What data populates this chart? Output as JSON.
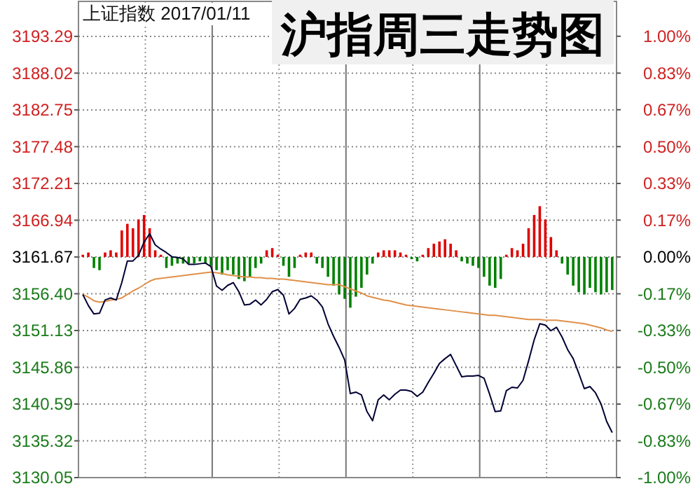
{
  "chart_data": {
    "type": "line",
    "title": "沪指周三走势图",
    "subtitle": "上证指数 2017/01/11",
    "categories": [
      null,
      null,
      null,
      null,
      null,
      null,
      null,
      null,
      null,
      null,
      null,
      null,
      null,
      null,
      null,
      null,
      null,
      null,
      null,
      null,
      null,
      null,
      null,
      null,
      null,
      null,
      null,
      null,
      null,
      null,
      null,
      null,
      null,
      null,
      null,
      null,
      null,
      null,
      null,
      null,
      null,
      null,
      null,
      null,
      null,
      null,
      null,
      null,
      null,
      null,
      null,
      null,
      null,
      null,
      null,
      null,
      null,
      null,
      null,
      null,
      null,
      null,
      null,
      null,
      null,
      null,
      null,
      null,
      null,
      null,
      null,
      null,
      null,
      null,
      null,
      null,
      null,
      null,
      null,
      null,
      null,
      null,
      null,
      null,
      null,
      null,
      null,
      null,
      null,
      null,
      null,
      null,
      null,
      null,
      null,
      null
    ],
    "ylim": [
      3130.05,
      3198.3
    ],
    "yticks": [
      {
        "value": 3130.05,
        "label": "3130.05"
      },
      {
        "value": 3135.32,
        "label": "3135.32"
      },
      {
        "value": 3140.59,
        "label": "3140.59"
      },
      {
        "value": 3145.86,
        "label": "3145.86"
      },
      {
        "value": 3151.13,
        "label": "3151.13"
      },
      {
        "value": 3156.4,
        "label": "3156.40"
      },
      {
        "value": 3161.67,
        "label": "3161.67"
      },
      {
        "value": 3166.94,
        "label": "3166.94"
      },
      {
        "value": 3172.21,
        "label": "3172.21"
      },
      {
        "value": 3177.48,
        "label": "3177.48"
      },
      {
        "value": 3182.75,
        "label": "3182.75"
      },
      {
        "value": 3188.02,
        "label": "3188.02"
      },
      {
        "value": 3193.29,
        "label": "3193.29"
      }
    ],
    "y2lim": [
      -1,
      1.158
    ],
    "y2ticks": [
      {
        "value": -1,
        "label": "-1.00%"
      },
      {
        "value": -0.833,
        "label": "-0.83%"
      },
      {
        "value": -0.667,
        "label": "-0.67%"
      },
      {
        "value": -0.5,
        "label": "-0.50%"
      },
      {
        "value": -0.333,
        "label": "-0.33%"
      },
      {
        "value": -0.167,
        "label": "-0.17%"
      },
      {
        "value": 0,
        "label": "0.00%"
      },
      {
        "value": 0.167,
        "label": "0.17%"
      },
      {
        "value": 0.333,
        "label": "0.33%"
      },
      {
        "value": 0.5,
        "label": "0.50%"
      },
      {
        "value": 0.667,
        "label": "0.67%"
      },
      {
        "value": 0.833,
        "label": "0.83%"
      },
      {
        "value": 1,
        "label": "1.00%"
      }
    ],
    "tick_labels": "y",
    "grid": true,
    "series": [
      {
        "type": "bar",
        "axis": "y2",
        "values": [
          0.01,
          0.02,
          -0.05,
          -0.06,
          0.02,
          0.03,
          0.02,
          0.12,
          0.15,
          0.13,
          0.17,
          0.19,
          0.13,
          0.03,
          0.01,
          -0.05,
          -0.04,
          -0.03,
          -0.03,
          -0.03,
          -0.03,
          -0.02,
          -0.03,
          -0.04,
          -0.06,
          -0.08,
          -0.06,
          -0.08,
          -0.1,
          -0.11,
          -0.09,
          -0.05,
          -0.03,
          0.03,
          0.04,
          0.01,
          -0.04,
          -0.09,
          -0.05,
          0.01,
          0.02,
          0.02,
          -0.03,
          -0.05,
          -0.09,
          -0.13,
          -0.17,
          -0.19,
          -0.23,
          -0.18,
          -0.14,
          -0.08,
          -0.03,
          0.02,
          0.03,
          0.03,
          0.03,
          0.02,
          0.01,
          -0.01,
          -0.02,
          0.01,
          0.04,
          0.06,
          0.07,
          0.08,
          0.06,
          0.03,
          -0.02,
          -0.03,
          -0.04,
          -0.05,
          -0.09,
          -0.13,
          -0.14,
          -0.1,
          0.01,
          0.04,
          0.03,
          0.06,
          0.13,
          0.19,
          0.23,
          0.17,
          0.09,
          0.03,
          -0.03,
          -0.08,
          -0.13,
          -0.16,
          -0.17,
          -0.14,
          -0.16,
          -0.17,
          -0.16,
          -0.15
        ],
        "colors": [
          "#e00000",
          "#e00000",
          "#008000",
          "#008000",
          "#e00000",
          "#e00000",
          "#e00000",
          "#e00000",
          "#e00000",
          "#e00000",
          "#e00000",
          "#e00000",
          "#e00000",
          "#e00000",
          "#e00000",
          "#008000",
          "#008000",
          "#008000",
          "#008000",
          "#008000",
          "#008000",
          "#008000",
          "#008000",
          "#008000",
          "#008000",
          "#008000",
          "#008000",
          "#008000",
          "#008000",
          "#008000",
          "#008000",
          "#008000",
          "#008000",
          "#e00000",
          "#e00000",
          "#e00000",
          "#008000",
          "#008000",
          "#008000",
          "#e00000",
          "#e00000",
          "#e00000",
          "#008000",
          "#008000",
          "#008000",
          "#008000",
          "#008000",
          "#008000",
          "#008000",
          "#008000",
          "#008000",
          "#008000",
          "#008000",
          "#e00000",
          "#e00000",
          "#e00000",
          "#e00000",
          "#e00000",
          "#e00000",
          "#008000",
          "#008000",
          "#e00000",
          "#e00000",
          "#e00000",
          "#e00000",
          "#e00000",
          "#e00000",
          "#e00000",
          "#008000",
          "#008000",
          "#008000",
          "#008000",
          "#008000",
          "#008000",
          "#008000",
          "#008000",
          "#e00000",
          "#e00000",
          "#e00000",
          "#e00000",
          "#e00000",
          "#e00000",
          "#e00000",
          "#e00000",
          "#e00000",
          "#e00000",
          "#008000",
          "#008000",
          "#008000",
          "#008000",
          "#008000",
          "#008000",
          "#008000",
          "#008000",
          "#008000",
          "#008000"
        ]
      },
      {
        "color": "#e0904a",
        "values": [
          3156.3,
          3155.9,
          3155.4,
          3155.2,
          3155.3,
          3155.5,
          3155.6,
          3155.8,
          3156.3,
          3156.8,
          3157.2,
          3157.7,
          3158.2,
          3158.5,
          3158.6,
          3158.7,
          3158.8,
          3158.9,
          3159.0,
          3159.1,
          3159.2,
          3159.3,
          3159.4,
          3159.5,
          3159.4,
          3159.3,
          3159.1,
          3159.0,
          3158.9,
          3158.8,
          3158.8,
          3158.7,
          3158.7,
          3158.6,
          3158.6,
          3158.5,
          3158.5,
          3158.4,
          3158.3,
          3158.2,
          3158.1,
          3158.0,
          3157.9,
          3157.8,
          3157.7,
          3157.7,
          3157.7,
          3157.4,
          3157.1,
          3156.8,
          3156.5,
          3156.1,
          3155.9,
          3155.7,
          3155.5,
          3155.4,
          3155.2,
          3155.0,
          3154.8,
          3154.7,
          3154.6,
          3154.5,
          3154.4,
          3154.3,
          3154.2,
          3154.1,
          3154.0,
          3153.9,
          3153.8,
          3153.7,
          3153.6,
          3153.5,
          3153.4,
          3153.3,
          3153.3,
          3153.2,
          3153.1,
          3153.0,
          3152.9,
          3152.8,
          3152.7,
          3152.7,
          3152.7,
          3152.6,
          3152.6,
          3152.6,
          3152.5,
          3152.4,
          3152.3,
          3152.2,
          3152.1,
          3151.9,
          3151.7,
          3151.5,
          3151.2,
          3151.0
        ]
      },
      {
        "color": "#000033",
        "values": [
          3156.3,
          3154.7,
          3153.5,
          3153.6,
          3155.5,
          3155.8,
          3155.5,
          3158.0,
          3161.1,
          3161.1,
          3161.9,
          3163.8,
          3165.0,
          3163.4,
          3162.8,
          3162.3,
          3161.7,
          3161.6,
          3161.4,
          3160.6,
          3160.6,
          3160.7,
          3160.8,
          3160.3,
          3157.5,
          3156.9,
          3157.6,
          3158.0,
          3156.7,
          3154.8,
          3154.9,
          3155.5,
          3154.8,
          3155.6,
          3156.7,
          3157.0,
          3156.2,
          3153.5,
          3154.3,
          3155.6,
          3155.8,
          3156.1,
          3155.5,
          3154.5,
          3152.1,
          3150.3,
          3148.7,
          3146.9,
          3142.1,
          3142.3,
          3141.9,
          3139.5,
          3138.2,
          3141.2,
          3141.9,
          3141.2,
          3142.0,
          3142.6,
          3142.6,
          3142.4,
          3141.7,
          3142.3,
          3143.7,
          3145.0,
          3146.4,
          3147.1,
          3147.7,
          3146.1,
          3144.5,
          3144.6,
          3144.6,
          3144.7,
          3144.3,
          3142.0,
          3139.5,
          3139.6,
          3142.5,
          3143.0,
          3142.9,
          3144.0,
          3146.8,
          3149.8,
          3152.1,
          3151.9,
          3151.1,
          3151.6,
          3150.2,
          3148.4,
          3147.1,
          3145.0,
          3142.8,
          3143.1,
          3142.2,
          3140.6,
          3138.1,
          3136.5
        ]
      }
    ]
  }
}
